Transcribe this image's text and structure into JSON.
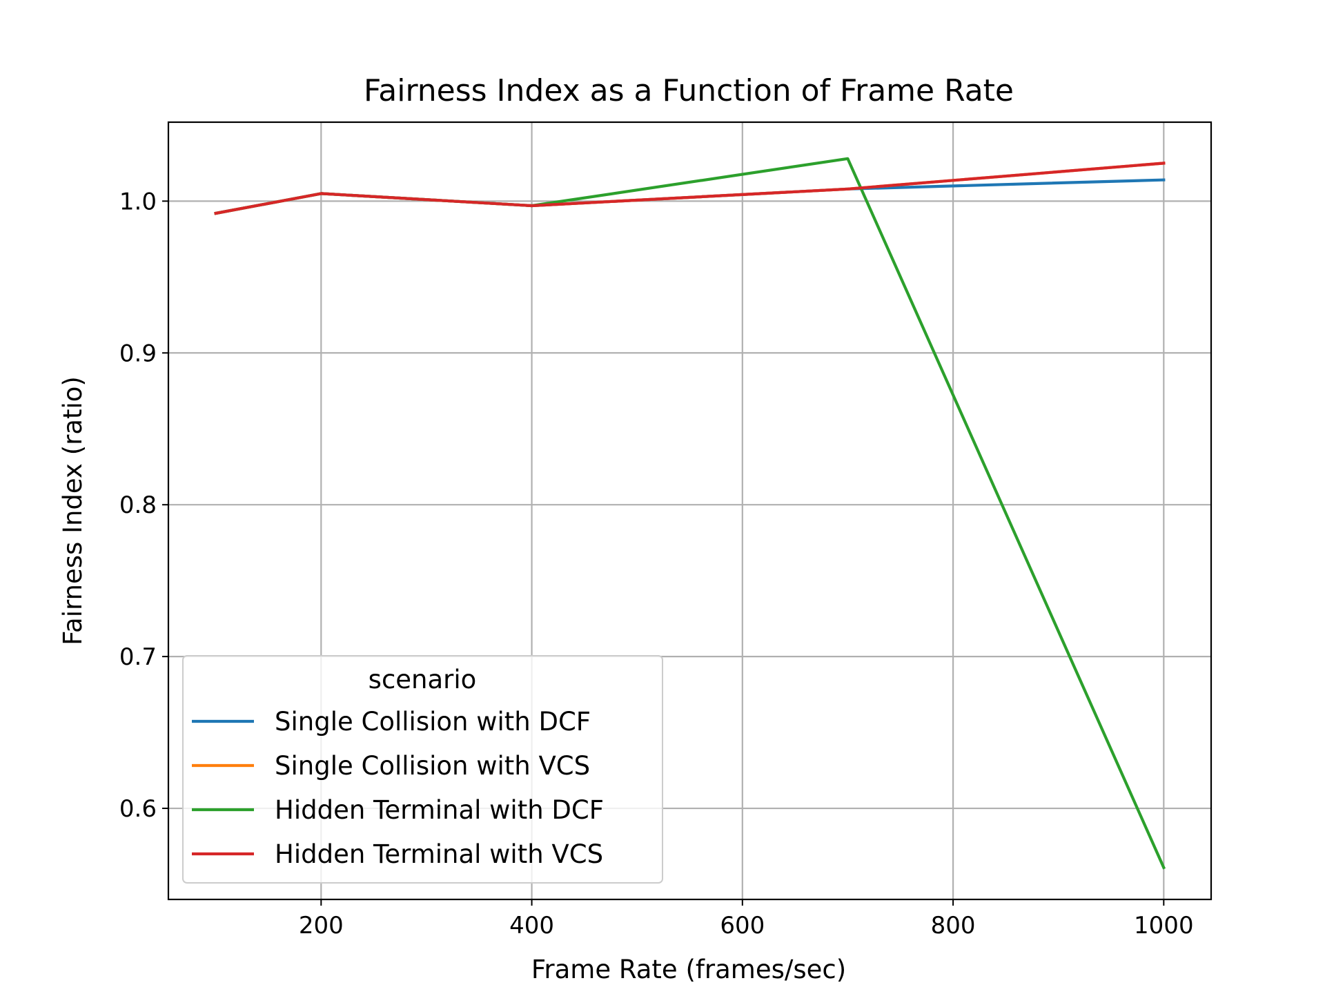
{
  "chart_data": {
    "type": "line",
    "title": "Fairness Index as a Function of Frame Rate",
    "xlabel": "Frame Rate (frames/sec)",
    "ylabel": "Fairness Index (ratio)",
    "xlim": [
      55,
      1045
    ],
    "ylim": [
      0.54,
      1.052
    ],
    "xticks": [
      200,
      400,
      600,
      800,
      1000
    ],
    "yticks": [
      0.6,
      0.7,
      0.8,
      0.9,
      1.0
    ],
    "xtick_labels": [
      "200",
      "400",
      "600",
      "800",
      "1000"
    ],
    "ytick_labels": [
      "0.6",
      "0.7",
      "0.8",
      "0.9",
      "1.0"
    ],
    "grid": true,
    "legend": {
      "title": "scenario",
      "placement": "lower-left"
    },
    "x": [
      100,
      200,
      400,
      700,
      1000
    ],
    "series": [
      {
        "name": "Single Collision with DCF",
        "color": "#1f77b4",
        "values": [
          0.992,
          1.005,
          0.997,
          1.008,
          1.014
        ]
      },
      {
        "name": "Single Collision with VCS",
        "color": "#ff7f0e",
        "values": [
          0.992,
          1.005,
          0.997,
          1.008,
          1.025
        ]
      },
      {
        "name": "Hidden Terminal with DCF",
        "color": "#2ca02c",
        "values": [
          0.992,
          1.005,
          0.997,
          1.028,
          0.561
        ]
      },
      {
        "name": "Hidden Terminal with VCS",
        "color": "#d62728",
        "values": [
          0.992,
          1.005,
          0.997,
          1.008,
          1.025
        ]
      }
    ]
  }
}
